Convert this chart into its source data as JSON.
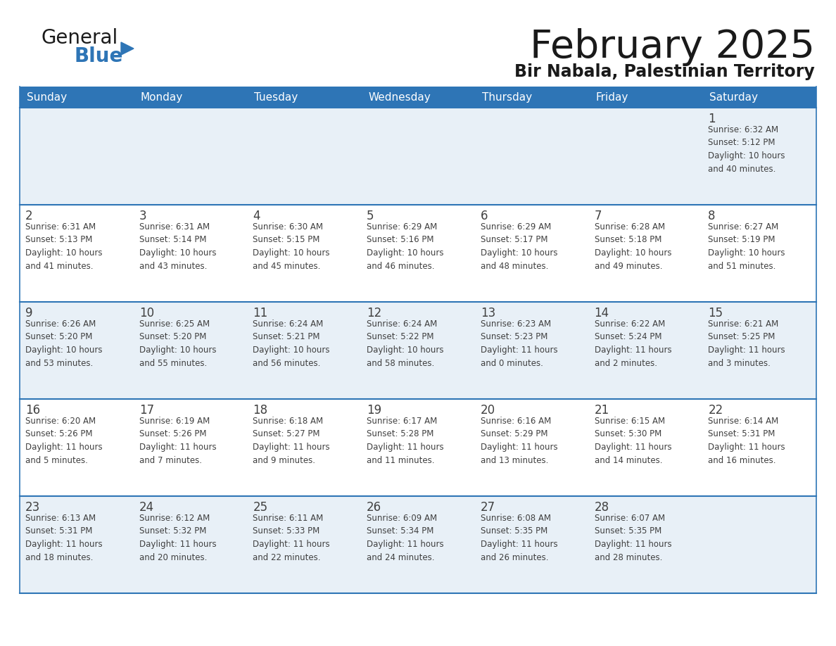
{
  "title": "February 2025",
  "subtitle": "Bir Nabala, Palestinian Territory",
  "header_color": "#2e75b6",
  "header_text_color": "#ffffff",
  "days_of_week": [
    "Sunday",
    "Monday",
    "Tuesday",
    "Wednesday",
    "Thursday",
    "Friday",
    "Saturday"
  ],
  "bg_color": "#ffffff",
  "cell_bg_light": "#e8f0f7",
  "cell_bg_white": "#ffffff",
  "separator_color": "#2e75b6",
  "text_color": "#404040",
  "title_color": "#1a1a1a",
  "subtitle_color": "#1a1a1a",
  "calendar": [
    [
      {
        "day": "",
        "info": ""
      },
      {
        "day": "",
        "info": ""
      },
      {
        "day": "",
        "info": ""
      },
      {
        "day": "",
        "info": ""
      },
      {
        "day": "",
        "info": ""
      },
      {
        "day": "",
        "info": ""
      },
      {
        "day": "1",
        "info": "Sunrise: 6:32 AM\nSunset: 5:12 PM\nDaylight: 10 hours\nand 40 minutes."
      }
    ],
    [
      {
        "day": "2",
        "info": "Sunrise: 6:31 AM\nSunset: 5:13 PM\nDaylight: 10 hours\nand 41 minutes."
      },
      {
        "day": "3",
        "info": "Sunrise: 6:31 AM\nSunset: 5:14 PM\nDaylight: 10 hours\nand 43 minutes."
      },
      {
        "day": "4",
        "info": "Sunrise: 6:30 AM\nSunset: 5:15 PM\nDaylight: 10 hours\nand 45 minutes."
      },
      {
        "day": "5",
        "info": "Sunrise: 6:29 AM\nSunset: 5:16 PM\nDaylight: 10 hours\nand 46 minutes."
      },
      {
        "day": "6",
        "info": "Sunrise: 6:29 AM\nSunset: 5:17 PM\nDaylight: 10 hours\nand 48 minutes."
      },
      {
        "day": "7",
        "info": "Sunrise: 6:28 AM\nSunset: 5:18 PM\nDaylight: 10 hours\nand 49 minutes."
      },
      {
        "day": "8",
        "info": "Sunrise: 6:27 AM\nSunset: 5:19 PM\nDaylight: 10 hours\nand 51 minutes."
      }
    ],
    [
      {
        "day": "9",
        "info": "Sunrise: 6:26 AM\nSunset: 5:20 PM\nDaylight: 10 hours\nand 53 minutes."
      },
      {
        "day": "10",
        "info": "Sunrise: 6:25 AM\nSunset: 5:20 PM\nDaylight: 10 hours\nand 55 minutes."
      },
      {
        "day": "11",
        "info": "Sunrise: 6:24 AM\nSunset: 5:21 PM\nDaylight: 10 hours\nand 56 minutes."
      },
      {
        "day": "12",
        "info": "Sunrise: 6:24 AM\nSunset: 5:22 PM\nDaylight: 10 hours\nand 58 minutes."
      },
      {
        "day": "13",
        "info": "Sunrise: 6:23 AM\nSunset: 5:23 PM\nDaylight: 11 hours\nand 0 minutes."
      },
      {
        "day": "14",
        "info": "Sunrise: 6:22 AM\nSunset: 5:24 PM\nDaylight: 11 hours\nand 2 minutes."
      },
      {
        "day": "15",
        "info": "Sunrise: 6:21 AM\nSunset: 5:25 PM\nDaylight: 11 hours\nand 3 minutes."
      }
    ],
    [
      {
        "day": "16",
        "info": "Sunrise: 6:20 AM\nSunset: 5:26 PM\nDaylight: 11 hours\nand 5 minutes."
      },
      {
        "day": "17",
        "info": "Sunrise: 6:19 AM\nSunset: 5:26 PM\nDaylight: 11 hours\nand 7 minutes."
      },
      {
        "day": "18",
        "info": "Sunrise: 6:18 AM\nSunset: 5:27 PM\nDaylight: 11 hours\nand 9 minutes."
      },
      {
        "day": "19",
        "info": "Sunrise: 6:17 AM\nSunset: 5:28 PM\nDaylight: 11 hours\nand 11 minutes."
      },
      {
        "day": "20",
        "info": "Sunrise: 6:16 AM\nSunset: 5:29 PM\nDaylight: 11 hours\nand 13 minutes."
      },
      {
        "day": "21",
        "info": "Sunrise: 6:15 AM\nSunset: 5:30 PM\nDaylight: 11 hours\nand 14 minutes."
      },
      {
        "day": "22",
        "info": "Sunrise: 6:14 AM\nSunset: 5:31 PM\nDaylight: 11 hours\nand 16 minutes."
      }
    ],
    [
      {
        "day": "23",
        "info": "Sunrise: 6:13 AM\nSunset: 5:31 PM\nDaylight: 11 hours\nand 18 minutes."
      },
      {
        "day": "24",
        "info": "Sunrise: 6:12 AM\nSunset: 5:32 PM\nDaylight: 11 hours\nand 20 minutes."
      },
      {
        "day": "25",
        "info": "Sunrise: 6:11 AM\nSunset: 5:33 PM\nDaylight: 11 hours\nand 22 minutes."
      },
      {
        "day": "26",
        "info": "Sunrise: 6:09 AM\nSunset: 5:34 PM\nDaylight: 11 hours\nand 24 minutes."
      },
      {
        "day": "27",
        "info": "Sunrise: 6:08 AM\nSunset: 5:35 PM\nDaylight: 11 hours\nand 26 minutes."
      },
      {
        "day": "28",
        "info": "Sunrise: 6:07 AM\nSunset: 5:35 PM\nDaylight: 11 hours\nand 28 minutes."
      },
      {
        "day": "",
        "info": ""
      }
    ]
  ]
}
